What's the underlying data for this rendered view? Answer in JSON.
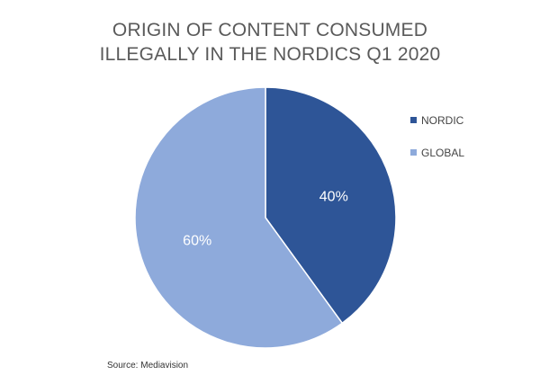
{
  "chart_data": {
    "type": "pie",
    "title": "ORIGIN OF CONTENT CONSUMED ILLEGALLY IN THE NORDICS Q1 2020",
    "title_lines": [
      "ORIGIN OF CONTENT CONSUMED",
      "ILLEGALLY IN THE NORDICS Q1 2020"
    ],
    "slices": [
      {
        "name": "NORDIC",
        "value": 40,
        "label": "40%",
        "color": "#2e5597"
      },
      {
        "name": "GLOBAL",
        "value": 60,
        "label": "60%",
        "color": "#8eaadb"
      }
    ],
    "legend": {
      "placement": "right",
      "entries": [
        "NORDIC",
        "GLOBAL"
      ]
    },
    "source": "Source: Mediavision"
  }
}
